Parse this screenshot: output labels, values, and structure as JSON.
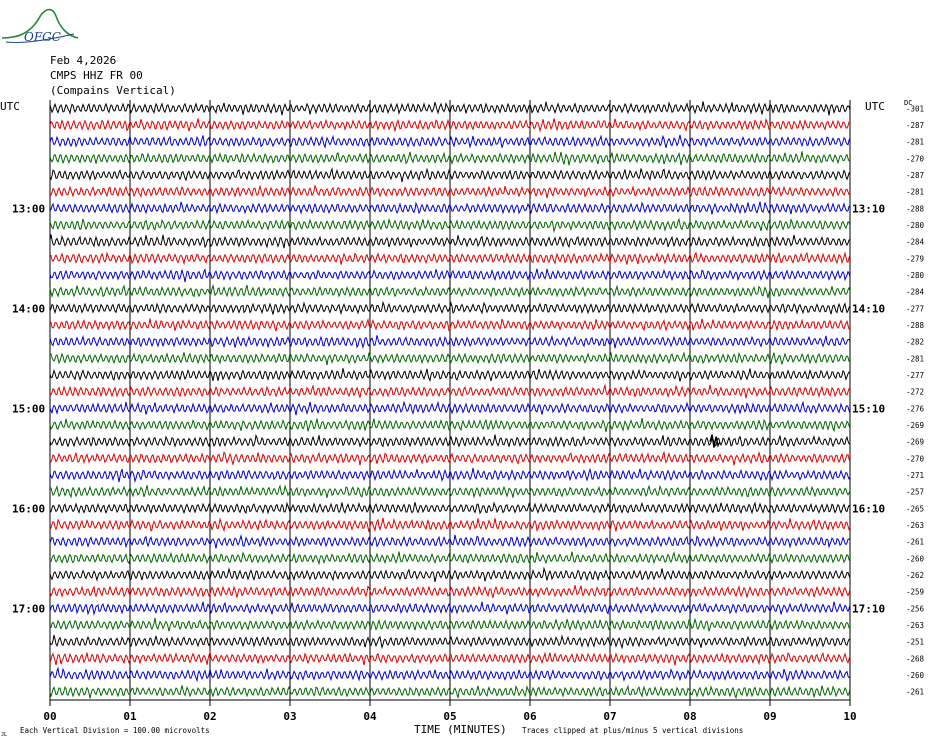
{
  "logo": {
    "text": "OFGC",
    "color": "#2a8a3a",
    "text_color": "#1a3d8a"
  },
  "header": {
    "date": "Feb 4,2026",
    "station": "CMPS HHZ FR 00",
    "site": "(Compains Vertical)"
  },
  "chart_data": {
    "type": "line",
    "subtype": "helicorder",
    "left_axis_title": "UTC",
    "right_axis_title": "UTC",
    "dc_title": "DC",
    "left_hour_labels": [
      {
        "row": 6,
        "text": "13:00"
      },
      {
        "row": 12,
        "text": "14:00"
      },
      {
        "row": 18,
        "text": "15:00"
      },
      {
        "row": 24,
        "text": "16:00"
      },
      {
        "row": 30,
        "text": "17:00"
      }
    ],
    "right_hour_labels": [
      {
        "row": 6,
        "text": "13:10"
      },
      {
        "row": 12,
        "text": "14:10"
      },
      {
        "row": 18,
        "text": "15:10"
      },
      {
        "row": 24,
        "text": "16:10"
      },
      {
        "row": 30,
        "text": "17:10"
      }
    ],
    "dc_offsets": [
      "-301",
      "-287",
      "-281",
      "-270",
      "-287",
      "-281",
      "-288",
      "-280",
      "-284",
      "-279",
      "-280",
      "-284",
      "-277",
      "-288",
      "-282",
      "-281",
      "-277",
      "-272",
      "-276",
      "-269",
      "-269",
      "-270",
      "-271",
      "-257",
      "-265",
      "-263",
      "-261",
      "-260",
      "-262",
      "-259",
      "-256",
      "-263",
      "-251",
      "-268",
      "-260",
      "-261"
    ],
    "trace_colors": [
      "#000000",
      "#dd0000",
      "#0000cc",
      "#006600"
    ],
    "x_ticks": [
      "00",
      "01",
      "02",
      "03",
      "04",
      "05",
      "06",
      "07",
      "08",
      "09",
      "10"
    ],
    "xlabel": "TIME (MINUTES)",
    "xlim": [
      0,
      10
    ],
    "rows": 36,
    "event": {
      "row": 20,
      "minute": 8.3
    },
    "grid": true
  },
  "footer": {
    "left_mark": "JL",
    "scale_note": "Each Vertical Division =  100.00 microvolts",
    "clip_note": "Traces clipped at plus/minus 5 vertical divisions"
  }
}
